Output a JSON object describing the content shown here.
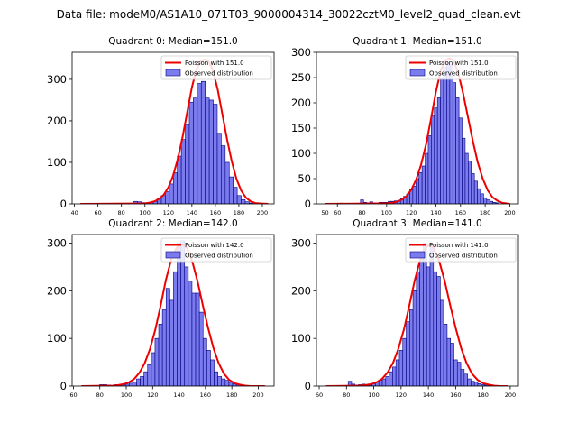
{
  "figure_title": "Data file: modeM0/AS1A10_071T03_9000004314_30022cztM0_level2_quad_clean.evt",
  "colors": {
    "hist_fill": "#7b7bee",
    "hist_edge": "#000080",
    "poisson": "#ee0000",
    "axes": "#000000",
    "background": "#ffffff"
  },
  "chart_data": [
    {
      "type": "bar",
      "title": "Quadrant 0: Median=151.0",
      "median": 151.0,
      "legend": {
        "poisson": "Poisson with 151.0",
        "observed": "Observed distribution",
        "placement": "top-right"
      },
      "xlim": [
        38,
        210
      ],
      "ylim": [
        0,
        365
      ],
      "xticks": [
        40,
        60,
        80,
        100,
        120,
        140,
        160,
        180,
        200
      ],
      "yticks": [
        0,
        100,
        200,
        300
      ],
      "bin_width": 3.4,
      "bin_starts": [
        90.2,
        93.6,
        97.0,
        100.4,
        103.8,
        107.2,
        110.6,
        114.0,
        117.4,
        120.8,
        124.2,
        127.6,
        131.0,
        134.4,
        137.8,
        141.2,
        144.6,
        148.0,
        151.4,
        154.8,
        158.2,
        161.6,
        165.0,
        168.4,
        171.8,
        175.2,
        178.6,
        182.0,
        185.4,
        188.8
      ],
      "counts": [
        6,
        5,
        3,
        2,
        4,
        6,
        14,
        20,
        30,
        48,
        75,
        115,
        155,
        190,
        245,
        255,
        290,
        295,
        255,
        250,
        240,
        170,
        140,
        100,
        65,
        40,
        20,
        10,
        5,
        2
      ],
      "poisson_x": [
        45,
        100,
        104,
        108,
        112,
        116,
        120,
        124,
        128,
        132,
        136,
        140,
        144,
        148,
        151,
        154,
        158,
        162,
        166,
        170,
        174,
        178,
        182,
        186,
        190,
        194,
        198,
        205
      ],
      "poisson_y": [
        0,
        1,
        3,
        6,
        12,
        22,
        40,
        68,
        108,
        160,
        220,
        280,
        325,
        345,
        348,
        345,
        320,
        275,
        215,
        155,
        102,
        60,
        32,
        15,
        6,
        2,
        1,
        0
      ]
    },
    {
      "type": "bar",
      "title": "Quadrant 1: Median=151.0",
      "median": 151.0,
      "legend": {
        "poisson": "Poisson with 151.0",
        "observed": "Observed distribution",
        "placement": "top-right"
      },
      "xlim": [
        43,
        207
      ],
      "ylim": [
        0,
        300
      ],
      "xticks": [
        50,
        60,
        80,
        100,
        120,
        140,
        160,
        180,
        200
      ],
      "yticks": [
        0,
        50,
        100,
        150,
        200,
        250,
        300
      ],
      "bin_width": 2.5,
      "bin_starts": [
        78.75,
        81.25,
        83.75,
        86.25,
        88.75,
        91.25,
        93.75,
        96.25,
        98.75,
        101.25,
        103.75,
        106.25,
        108.75,
        111.25,
        113.75,
        116.25,
        118.75,
        121.25,
        123.75,
        126.25,
        128.75,
        131.25,
        133.75,
        136.25,
        138.75,
        141.25,
        143.75,
        146.25,
        148.75,
        151.25,
        153.75,
        156.25,
        158.75,
        161.25,
        163.75,
        166.25,
        168.75,
        171.25,
        173.75,
        176.25,
        178.75,
        181.25,
        183.75,
        186.25,
        188.75
      ],
      "counts": [
        8,
        3,
        2,
        4,
        2,
        2,
        3,
        3,
        3,
        5,
        5,
        6,
        6,
        10,
        15,
        20,
        28,
        35,
        50,
        62,
        75,
        100,
        135,
        175,
        190,
        210,
        250,
        270,
        280,
        275,
        240,
        210,
        170,
        130,
        100,
        85,
        60,
        45,
        30,
        20,
        12,
        8,
        5,
        3,
        2
      ],
      "poisson_x": [
        50,
        100,
        104,
        108,
        112,
        116,
        120,
        124,
        128,
        132,
        136,
        140,
        144,
        148,
        151,
        154,
        158,
        162,
        166,
        170,
        174,
        178,
        182,
        186,
        190,
        194,
        200
      ],
      "poisson_y": [
        0,
        1,
        2,
        4,
        8,
        15,
        28,
        48,
        78,
        118,
        168,
        222,
        265,
        285,
        288,
        285,
        260,
        220,
        172,
        124,
        82,
        50,
        27,
        13,
        6,
        2,
        0
      ]
    },
    {
      "type": "bar",
      "title": "Quadrant 2: Median=142.0",
      "median": 142.0,
      "legend": {
        "poisson": "Poisson with 142.0",
        "observed": "Observed distribution",
        "placement": "top-right"
      },
      "xlim": [
        59,
        212
      ],
      "ylim": [
        0,
        318
      ],
      "xticks": [
        60,
        80,
        100,
        120,
        140,
        160,
        180,
        200
      ],
      "yticks": [
        0,
        100,
        200,
        300
      ],
      "bin_width": 2.8,
      "bin_starts": [
        79.8,
        82.6,
        85.4,
        88.2,
        91.0,
        93.8,
        96.6,
        99.4,
        102.2,
        105.0,
        107.8,
        110.6,
        113.4,
        116.2,
        119.0,
        121.8,
        124.6,
        127.4,
        130.2,
        133.0,
        135.8,
        138.6,
        141.4,
        144.2,
        147.0,
        149.8,
        152.6,
        155.4,
        158.2,
        161.0,
        163.8,
        166.6,
        169.4,
        172.2,
        175.0,
        177.8,
        180.6,
        183.4
      ],
      "counts": [
        3,
        3,
        2,
        1,
        3,
        2,
        3,
        4,
        6,
        8,
        15,
        20,
        30,
        45,
        70,
        100,
        130,
        160,
        205,
        180,
        240,
        300,
        305,
        250,
        220,
        195,
        195,
        155,
        100,
        75,
        55,
        30,
        20,
        15,
        12,
        8,
        5,
        3
      ],
      "poisson_x": [
        66,
        90,
        94,
        98,
        102,
        106,
        110,
        114,
        118,
        122,
        126,
        130,
        134,
        138,
        142,
        146,
        150,
        154,
        158,
        162,
        166,
        170,
        174,
        178,
        182,
        186,
        190,
        194,
        205
      ],
      "poisson_y": [
        0,
        1,
        2,
        4,
        8,
        15,
        28,
        48,
        78,
        118,
        168,
        222,
        265,
        290,
        298,
        290,
        262,
        220,
        170,
        122,
        80,
        48,
        26,
        13,
        6,
        3,
        1,
        0,
        0
      ]
    },
    {
      "type": "bar",
      "title": "Quadrant 3: Median=141.0",
      "median": 141.0,
      "legend": {
        "poisson": "Poisson with 141.0",
        "observed": "Observed distribution",
        "placement": "top-right"
      },
      "xlim": [
        58,
        206
      ],
      "ylim": [
        0,
        318
      ],
      "xticks": [
        60,
        80,
        100,
        120,
        140,
        160,
        180,
        200
      ],
      "yticks": [
        0,
        100,
        200,
        300
      ],
      "bin_width": 2.5,
      "bin_starts": [
        81.25,
        83.75,
        86.25,
        88.75,
        91.25,
        93.75,
        96.25,
        98.75,
        101.25,
        103.75,
        106.25,
        108.75,
        111.25,
        113.75,
        116.25,
        118.75,
        121.25,
        123.75,
        126.25,
        128.75,
        131.25,
        133.75,
        136.25,
        138.75,
        141.25,
        143.75,
        146.25,
        148.75,
        151.25,
        153.75,
        156.25,
        158.75,
        161.25,
        163.75,
        166.25,
        168.75,
        171.25,
        173.75,
        176.25,
        178.75,
        181.25,
        183.75
      ],
      "counts": [
        10,
        4,
        2,
        3,
        4,
        3,
        2,
        5,
        8,
        12,
        15,
        20,
        30,
        40,
        55,
        75,
        100,
        135,
        160,
        200,
        240,
        270,
        300,
        250,
        290,
        240,
        230,
        180,
        130,
        100,
        90,
        55,
        50,
        35,
        25,
        15,
        10,
        8,
        5,
        3,
        2,
        1
      ],
      "poisson_x": [
        65,
        90,
        94,
        98,
        102,
        106,
        110,
        114,
        118,
        122,
        126,
        130,
        134,
        138,
        141,
        144,
        148,
        152,
        156,
        160,
        164,
        168,
        172,
        176,
        180,
        184,
        188,
        192,
        198
      ],
      "poisson_y": [
        0,
        1,
        2,
        4,
        8,
        15,
        28,
        48,
        78,
        118,
        168,
        222,
        265,
        290,
        298,
        290,
        262,
        220,
        170,
        122,
        80,
        48,
        26,
        13,
        6,
        3,
        1,
        0,
        0
      ]
    }
  ]
}
